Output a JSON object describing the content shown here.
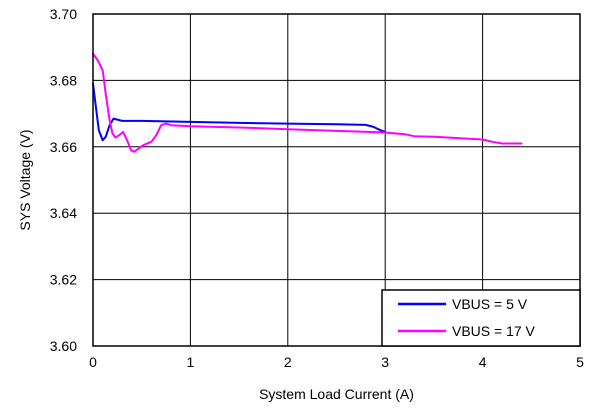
{
  "chart_data": {
    "type": "line",
    "xlabel": "System Load Current (A)",
    "ylabel": "SYS Voltage (V)",
    "xlim": [
      0,
      5
    ],
    "ylim": [
      3.6,
      3.7
    ],
    "x_ticks": [
      "0",
      "1",
      "2",
      "3",
      "4",
      "5"
    ],
    "y_ticks": [
      "3.60",
      "3.62",
      "3.64",
      "3.66",
      "3.68",
      "3.70"
    ],
    "grid": true,
    "legend_position": "bottom-right",
    "series": [
      {
        "name": "VBUS = 5 V",
        "color": "#0000ff",
        "points": [
          [
            0.0,
            3.679
          ],
          [
            0.03,
            3.672
          ],
          [
            0.06,
            3.665
          ],
          [
            0.1,
            3.662
          ],
          [
            0.13,
            3.663
          ],
          [
            0.17,
            3.6665
          ],
          [
            0.21,
            3.6685
          ],
          [
            0.25,
            3.6682
          ],
          [
            0.3,
            3.6678
          ],
          [
            0.5,
            3.6678
          ],
          [
            1.0,
            3.6675
          ],
          [
            1.5,
            3.6672
          ],
          [
            2.0,
            3.667
          ],
          [
            2.5,
            3.6668
          ],
          [
            2.8,
            3.6666
          ],
          [
            2.88,
            3.666
          ],
          [
            2.95,
            3.665
          ],
          [
            3.0,
            3.6645
          ]
        ]
      },
      {
        "name": "VBUS = 17 V",
        "color": "#ff00ff",
        "points": [
          [
            0.0,
            3.688
          ],
          [
            0.05,
            3.686
          ],
          [
            0.1,
            3.683
          ],
          [
            0.13,
            3.676
          ],
          [
            0.17,
            3.668
          ],
          [
            0.2,
            3.664
          ],
          [
            0.23,
            3.6628
          ],
          [
            0.27,
            3.6635
          ],
          [
            0.31,
            3.6645
          ],
          [
            0.35,
            3.662
          ],
          [
            0.39,
            3.659
          ],
          [
            0.42,
            3.6585
          ],
          [
            0.47,
            3.6595
          ],
          [
            0.52,
            3.6605
          ],
          [
            0.6,
            3.6615
          ],
          [
            0.65,
            3.6635
          ],
          [
            0.7,
            3.6665
          ],
          [
            0.75,
            3.667
          ],
          [
            0.8,
            3.6665
          ],
          [
            1.0,
            3.6662
          ],
          [
            1.5,
            3.6658
          ],
          [
            2.0,
            3.6653
          ],
          [
            2.5,
            3.6648
          ],
          [
            3.0,
            3.6643
          ],
          [
            3.2,
            3.6638
          ],
          [
            3.3,
            3.6632
          ],
          [
            3.5,
            3.663
          ],
          [
            4.0,
            3.6622
          ],
          [
            4.1,
            3.6615
          ],
          [
            4.2,
            3.661
          ],
          [
            4.4,
            3.661
          ]
        ]
      }
    ]
  }
}
